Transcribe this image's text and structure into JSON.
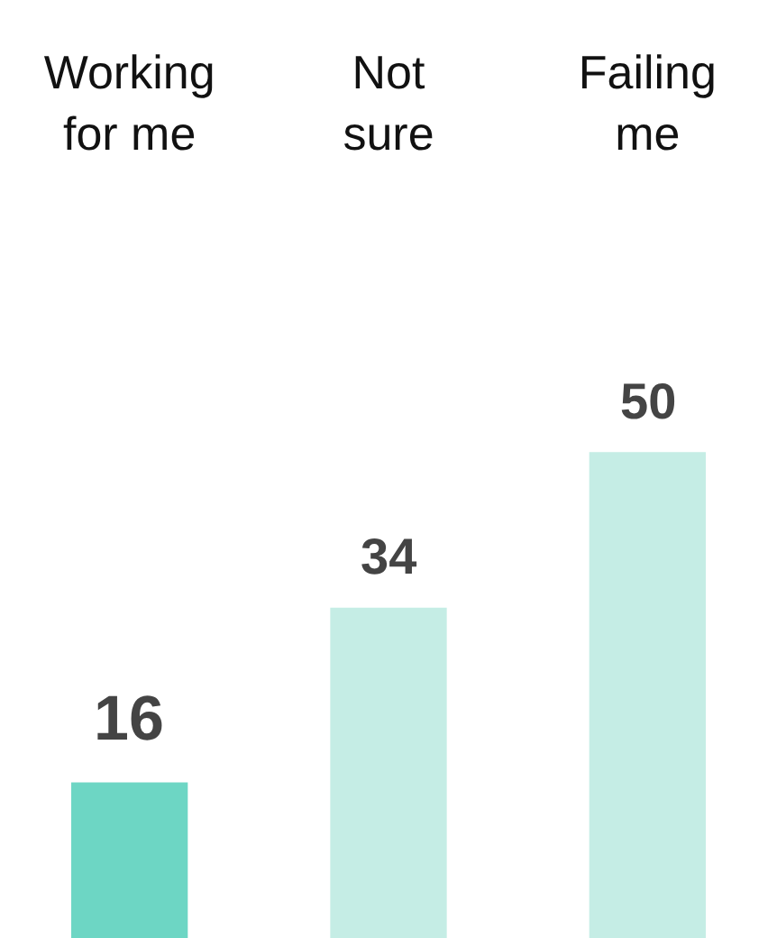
{
  "chart_data": {
    "type": "bar",
    "categories": [
      "Working\nfor me",
      "Not\nsure",
      "Failing\nme"
    ],
    "values": [
      16,
      34,
      50
    ],
    "colors": [
      "#6dd6c4",
      "#c5ede5",
      "#c5ede5"
    ],
    "data_labels": true,
    "tick_labels": "x"
  }
}
